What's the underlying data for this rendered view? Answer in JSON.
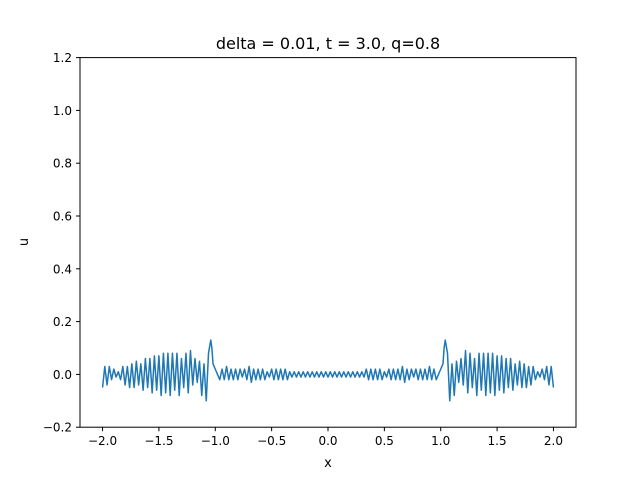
{
  "chart_data": {
    "type": "line",
    "title": "delta = 0.01, t = 3.0, q=0.8",
    "xlabel": "x",
    "ylabel": "u",
    "xlim": [
      -2.2,
      2.2
    ],
    "ylim": [
      -0.2,
      1.2
    ],
    "x_ticks": [
      -2.0,
      -1.5,
      -1.0,
      -0.5,
      0.0,
      0.5,
      1.0,
      1.5,
      2.0
    ],
    "x_tick_labels": [
      "−2.0",
      "−1.5",
      "−1.0",
      "−0.5",
      "0.0",
      "0.5",
      "1.0",
      "1.5",
      "2.0"
    ],
    "y_ticks": [
      -0.2,
      0.0,
      0.2,
      0.4,
      0.6,
      0.8,
      1.0,
      1.2
    ],
    "y_tick_labels": [
      "−0.2",
      "0.0",
      "0.2",
      "0.4",
      "0.6",
      "0.8",
      "1.0",
      "1.2"
    ],
    "grid": false,
    "series_color": "#1f77b4",
    "series": [
      {
        "x": [
          -2.0,
          -1.98,
          -1.96,
          -1.94,
          -1.92,
          -1.9,
          -1.88,
          -1.86,
          -1.84,
          -1.82,
          -1.8,
          -1.78,
          -1.76,
          -1.74,
          -1.72,
          -1.7,
          -1.68,
          -1.66,
          -1.64,
          -1.62,
          -1.6,
          -1.58,
          -1.56,
          -1.54,
          -1.52,
          -1.5,
          -1.48,
          -1.46,
          -1.44,
          -1.42,
          -1.4,
          -1.38,
          -1.36,
          -1.34,
          -1.32,
          -1.3,
          -1.28,
          -1.26,
          -1.24,
          -1.22,
          -1.2,
          -1.18,
          -1.16,
          -1.14,
          -1.12,
          -1.1,
          -1.08,
          -1.06,
          -1.04,
          -1.03,
          -1.02,
          -1.0,
          -0.98,
          -0.96,
          -0.94,
          -0.92,
          -0.9,
          -0.88,
          -0.86,
          -0.84,
          -0.82,
          -0.8,
          -0.78,
          -0.76,
          -0.74,
          -0.72,
          -0.7,
          -0.68,
          -0.66,
          -0.64,
          -0.62,
          -0.6,
          -0.58,
          -0.56,
          -0.54,
          -0.52,
          -0.5,
          -0.48,
          -0.46,
          -0.44,
          -0.42,
          -0.4,
          -0.38,
          -0.36,
          -0.34,
          -0.32,
          -0.3,
          -0.28,
          -0.26,
          -0.24,
          -0.22,
          -0.2,
          -0.18,
          -0.16,
          -0.14,
          -0.12,
          -0.1,
          -0.08,
          -0.06,
          -0.04,
          -0.02,
          0.0,
          0.02,
          0.04,
          0.06,
          0.08,
          0.1,
          0.12,
          0.14,
          0.16,
          0.18,
          0.2,
          0.22,
          0.24,
          0.26,
          0.28,
          0.3,
          0.32,
          0.34,
          0.36,
          0.38,
          0.4,
          0.42,
          0.44,
          0.46,
          0.48,
          0.5,
          0.52,
          0.54,
          0.56,
          0.58,
          0.6,
          0.62,
          0.64,
          0.66,
          0.68,
          0.7,
          0.72,
          0.74,
          0.76,
          0.78,
          0.8,
          0.82,
          0.84,
          0.86,
          0.88,
          0.9,
          0.92,
          0.94,
          0.96,
          0.98,
          1.0,
          1.02,
          1.03,
          1.04,
          1.06,
          1.08,
          1.1,
          1.12,
          1.14,
          1.16,
          1.18,
          1.2,
          1.22,
          1.24,
          1.26,
          1.28,
          1.3,
          1.32,
          1.34,
          1.36,
          1.38,
          1.4,
          1.42,
          1.44,
          1.46,
          1.48,
          1.5,
          1.52,
          1.54,
          1.56,
          1.58,
          1.6,
          1.62,
          1.64,
          1.66,
          1.68,
          1.7,
          1.72,
          1.74,
          1.76,
          1.78,
          1.8,
          1.82,
          1.84,
          1.86,
          1.88,
          1.9,
          1.92,
          1.94,
          1.96,
          1.98,
          2.0
        ],
        "y": [
          -0.05,
          0.03,
          -0.04,
          0.03,
          -0.02,
          0.02,
          -0.01,
          0.01,
          -0.02,
          0.03,
          -0.04,
          0.03,
          -0.05,
          0.04,
          -0.05,
          0.05,
          -0.04,
          0.04,
          -0.06,
          0.06,
          -0.05,
          0.06,
          -0.07,
          0.07,
          -0.06,
          0.07,
          -0.08,
          0.08,
          -0.07,
          0.08,
          -0.08,
          0.08,
          -0.06,
          0.08,
          -0.08,
          0.06,
          -0.05,
          0.08,
          -0.07,
          0.09,
          -0.04,
          0.06,
          -0.03,
          0.05,
          -0.08,
          0.04,
          -0.1,
          0.08,
          0.13,
          0.1,
          0.04,
          0.02,
          0.0,
          -0.02,
          0.02,
          -0.02,
          0.03,
          -0.02,
          0.02,
          -0.02,
          0.02,
          -0.02,
          0.02,
          -0.01,
          0.02,
          -0.02,
          0.03,
          -0.03,
          0.02,
          -0.02,
          0.02,
          -0.02,
          0.02,
          -0.02,
          0.01,
          -0.01,
          0.02,
          -0.02,
          0.02,
          -0.02,
          0.02,
          -0.02,
          0.02,
          -0.02,
          0.01,
          -0.01,
          0.01,
          -0.01,
          0.01,
          -0.01,
          0.01,
          -0.01,
          0.01,
          -0.01,
          0.01,
          -0.01,
          0.01,
          -0.01,
          0.01,
          -0.01,
          0.01,
          -0.01,
          0.01,
          -0.01,
          0.01,
          -0.01,
          0.01,
          -0.01,
          0.01,
          -0.01,
          0.01,
          -0.01,
          0.01,
          -0.01,
          0.01,
          -0.01,
          0.01,
          -0.01,
          0.02,
          -0.02,
          0.02,
          -0.02,
          0.02,
          -0.02,
          0.02,
          -0.02,
          0.01,
          -0.01,
          0.02,
          -0.02,
          0.02,
          -0.02,
          0.02,
          -0.02,
          0.03,
          -0.03,
          0.02,
          -0.02,
          0.02,
          -0.01,
          0.02,
          -0.02,
          0.02,
          -0.02,
          0.02,
          -0.02,
          0.03,
          -0.02,
          0.02,
          -0.02,
          0.0,
          0.02,
          0.04,
          0.1,
          0.13,
          0.08,
          -0.1,
          0.04,
          -0.08,
          0.05,
          -0.03,
          0.06,
          -0.04,
          0.09,
          -0.07,
          0.08,
          -0.05,
          0.06,
          -0.08,
          0.08,
          -0.06,
          0.08,
          -0.08,
          0.08,
          -0.07,
          0.08,
          -0.08,
          0.07,
          -0.06,
          0.07,
          -0.07,
          0.06,
          -0.05,
          0.06,
          -0.06,
          0.04,
          -0.04,
          0.05,
          -0.05,
          0.04,
          -0.05,
          0.03,
          -0.04,
          0.03,
          -0.02,
          0.01,
          -0.01,
          0.02,
          -0.02,
          0.03,
          -0.04,
          0.03,
          -0.05
        ]
      }
    ]
  }
}
